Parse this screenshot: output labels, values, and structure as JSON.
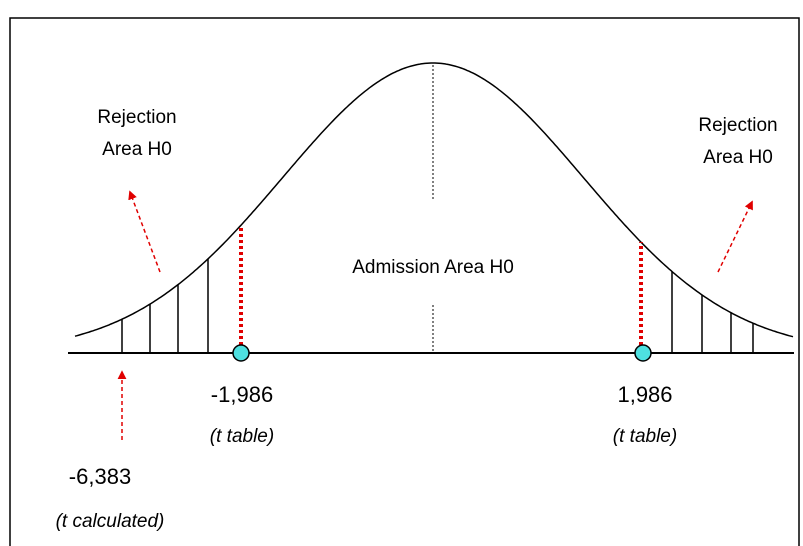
{
  "rejection_left": [
    "Rejection",
    "Area H0"
  ],
  "rejection_right": [
    "Rejection",
    "Area H0"
  ],
  "admission": "Admission Area H0",
  "critical_left": {
    "value": "-1,986",
    "note": "(t table)"
  },
  "critical_right": {
    "value": "1,986",
    "note": "(t table)"
  },
  "calculated": {
    "value": "-6,383",
    "note": "(t calculated)"
  }
}
